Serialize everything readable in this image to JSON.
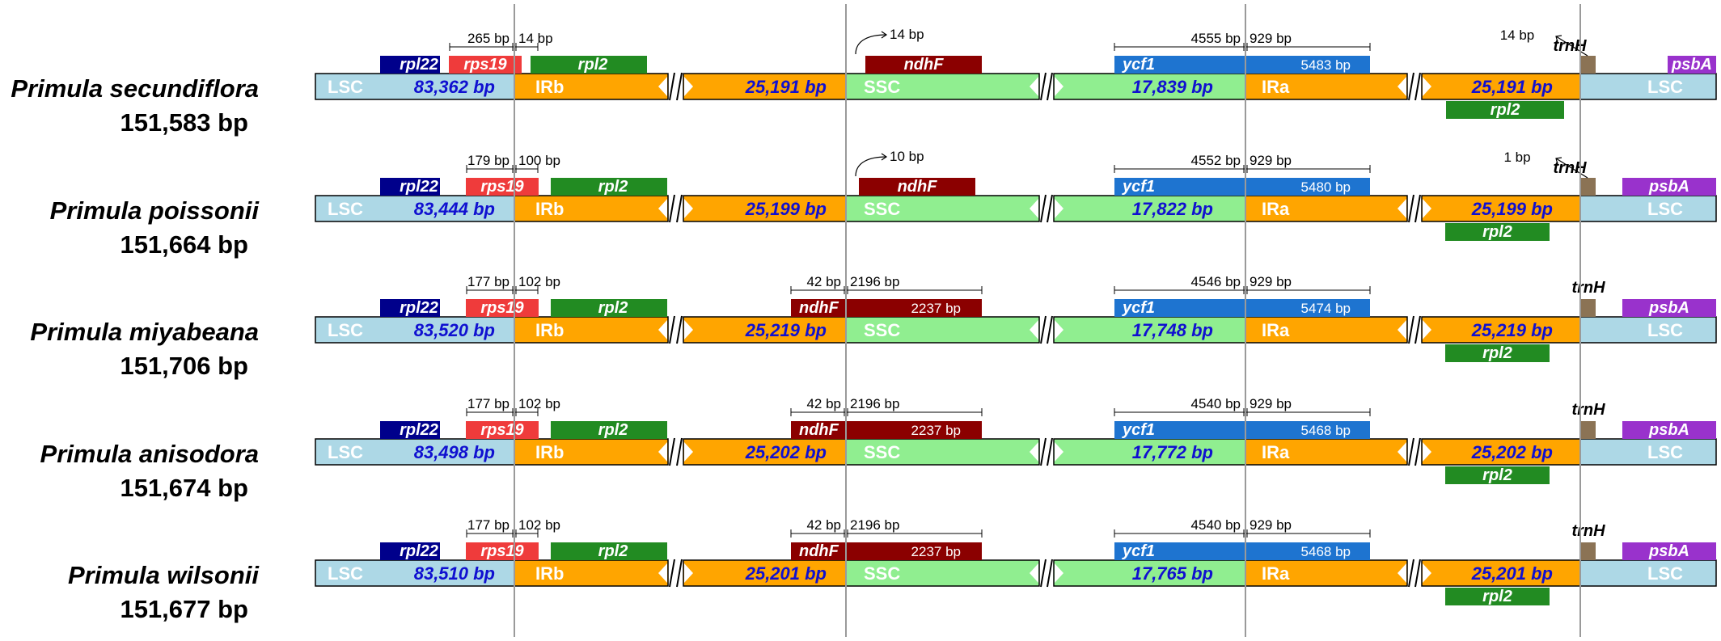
{
  "colors": {
    "LSC": "#add8e6",
    "IR": "#ffa500",
    "SSC": "#90ee90",
    "rpl22": "#00008b",
    "rps19": "#ef3b3b",
    "rpl2": "#228b22",
    "ndhF": "#8b0000",
    "ycf1": "#1e74d0",
    "psbA": "#9932cc",
    "trnH": "#8b7355",
    "region_text": "#ffffff",
    "length_text": "#1010d0"
  },
  "region_labels": {
    "LSC": "LSC",
    "IRb": "IRb",
    "SSC": "SSC",
    "IRa": "IRa"
  },
  "gene_labels": {
    "rpl22": "rpl22",
    "rps19": "rps19",
    "rpl2": "rpl2",
    "ndhF": "ndhF",
    "ycf1": "ycf1",
    "psbA": "psbA",
    "trnH": "trnH"
  },
  "species": [
    {
      "name": "Primula secundiflora",
      "total": "151,583 bp",
      "lsc": "83,362 bp",
      "irb": "25,191 bp",
      "ssc": "17,839 bp",
      "ira": "25,191 bp",
      "rps19_left": "265 bp",
      "rps19_right": "14 bp",
      "ndhF_dist": "14 bp",
      "ndhF_left": "",
      "ndhF_right": "",
      "ndhF_len": "",
      "ycf1_left": "4555 bp",
      "ycf1_right": "929 bp",
      "ycf1_len": "5483 bp",
      "trnH_dist": "14 bp"
    },
    {
      "name": "Primula poissonii",
      "total": "151,664 bp",
      "lsc": "83,444 bp",
      "irb": "25,199 bp",
      "ssc": "17,822 bp",
      "ira": "25,199 bp",
      "rps19_left": "179 bp",
      "rps19_right": "100 bp",
      "ndhF_dist": "10 bp",
      "ndhF_left": "",
      "ndhF_right": "",
      "ndhF_len": "",
      "ycf1_left": "4552 bp",
      "ycf1_right": "929 bp",
      "ycf1_len": "5480 bp",
      "trnH_dist": "1 bp"
    },
    {
      "name": "Primula miyabeana",
      "total": "151,706 bp",
      "lsc": "83,520 bp",
      "irb": "25,219 bp",
      "ssc": "17,748 bp",
      "ira": "25,219 bp",
      "rps19_left": "177 bp",
      "rps19_right": "102 bp",
      "ndhF_dist": "",
      "ndhF_left": "42 bp",
      "ndhF_right": "2196 bp",
      "ndhF_len": "2237 bp",
      "ycf1_left": "4546 bp",
      "ycf1_right": "929 bp",
      "ycf1_len": "5474 bp",
      "trnH_dist": ""
    },
    {
      "name": "Primula anisodora",
      "total": "151,674 bp",
      "lsc": "83,498 bp",
      "irb": "25,202 bp",
      "ssc": "17,772 bp",
      "ira": "25,202 bp",
      "rps19_left": "177 bp",
      "rps19_right": "102 bp",
      "ndhF_dist": "",
      "ndhF_left": "42 bp",
      "ndhF_right": "2196 bp",
      "ndhF_len": "2237 bp",
      "ycf1_left": "4540 bp",
      "ycf1_right": "929 bp",
      "ycf1_len": "5468 bp",
      "trnH_dist": ""
    },
    {
      "name": "Primula wilsonii",
      "total": "151,677 bp",
      "lsc": "83,510 bp",
      "irb": "25,201 bp",
      "ssc": "17,765 bp",
      "ira": "25,201 bp",
      "rps19_left": "177 bp",
      "rps19_right": "102 bp",
      "ndhF_dist": "",
      "ndhF_left": "42 bp",
      "ndhF_right": "2196 bp",
      "ndhF_len": "2237 bp",
      "ycf1_left": "4540 bp",
      "ycf1_right": "929 bp",
      "ycf1_len": "5468 bp",
      "trnH_dist": ""
    }
  ]
}
